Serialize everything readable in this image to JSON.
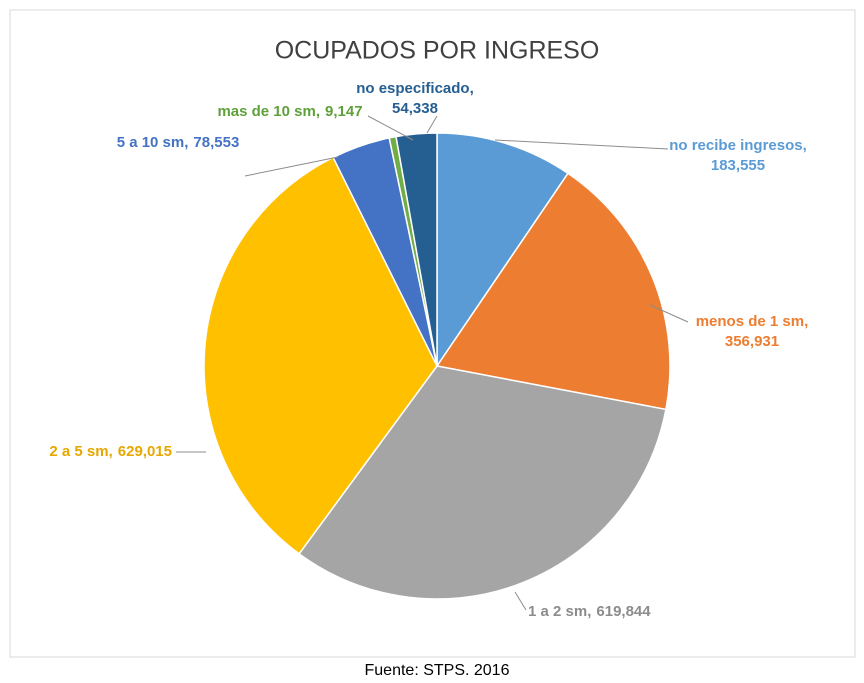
{
  "chart_data": {
    "type": "pie",
    "title": "OCUPADOS POR INGRESO",
    "categories": [
      "no recibe ingresos,",
      "menos de 1 sm,",
      "1 a 2 sm,",
      "2 a 5 sm,",
      "5 a 10 sm,",
      "mas de 10 sm,",
      "no especificado,"
    ],
    "values": [
      183555,
      356931,
      619844,
      629015,
      78553,
      9147,
      54338
    ],
    "value_labels": [
      "183,555",
      "356,931",
      "619,844",
      "629,015",
      "78,553",
      "9,147",
      "54,338"
    ],
    "colors": [
      "#5b9bd5",
      "#ed7d31",
      "#a5a5a5",
      "#ffc000",
      "#4472c4",
      "#70ad47",
      "#255e91"
    ],
    "label_colors": [
      "#5b9bd5",
      "#ed7d31",
      "#8c8c8c",
      "#e6a800",
      "#4472c4",
      "#5ea03a",
      "#255e91"
    ],
    "source": "Fuente: STPS. 2016"
  }
}
